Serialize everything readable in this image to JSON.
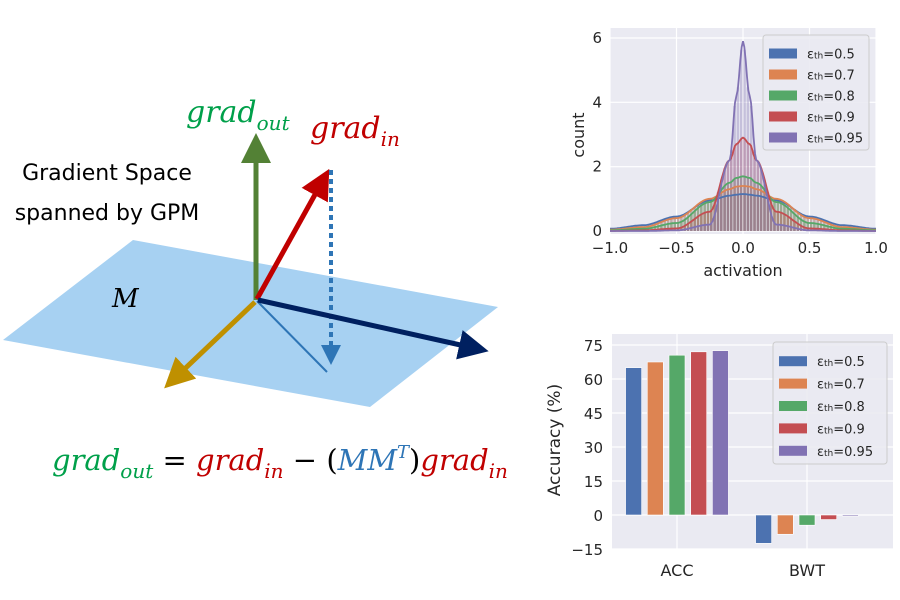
{
  "diagram": {
    "label_grad_out": {
      "base": "grad",
      "sub": "out"
    },
    "label_grad_in": {
      "base": "grad",
      "sub": "in"
    },
    "space_label_line1": "Gradient Space",
    "space_label_line2": "spanned by GPM",
    "plane_label": "M",
    "equation": {
      "lhs_base": "grad",
      "lhs_sub": "out",
      "eq": "=",
      "t1_base": "grad",
      "t1_sub": "in",
      "minus": "−",
      "open": "(",
      "mm": "MM",
      "sup": "T",
      "close": ")",
      "t2_base": "grad",
      "t2_sub": "in"
    },
    "colors": {
      "grad_out": "#538135",
      "grad_in": "#C00000",
      "plane": "#A7D1F2",
      "projection": "#2E75B6",
      "basis1": "#002060",
      "basis2": "#BF9000",
      "eq_mm": "#2E75B6"
    }
  },
  "chart_data": [
    {
      "type": "line",
      "xlabel": "activation",
      "ylabel": "count",
      "xlim": [
        -1.0,
        1.0
      ],
      "ylim": [
        0,
        6
      ],
      "xticks": [
        "−1.0",
        "−0.5",
        "0.0",
        "0.5",
        "1.0"
      ],
      "xtick_values": [
        -1,
        -0.5,
        0,
        0.5,
        1
      ],
      "yticks": [
        "0",
        "2",
        "4",
        "6"
      ],
      "ytick_values": [
        0,
        2,
        4,
        6
      ],
      "grid": true,
      "legend_placement": "top-right",
      "x": [
        -1,
        -0.75,
        -0.5,
        -0.25,
        -0.1,
        -0.05,
        0,
        0.05,
        0.1,
        0.25,
        0.5,
        0.75,
        1
      ],
      "series": [
        {
          "name": {
            "sym": "ε",
            "sub": "th",
            "val": "=0.5"
          },
          "color": "#4C72B0",
          "values": [
            0.07,
            0.18,
            0.45,
            0.95,
            1.1,
            1.13,
            1.15,
            1.13,
            1.1,
            0.95,
            0.45,
            0.18,
            0.07
          ]
        },
        {
          "name": {
            "sym": "ε",
            "sub": "th",
            "val": "=0.7"
          },
          "color": "#DD8452",
          "values": [
            0.04,
            0.12,
            0.4,
            1.0,
            1.3,
            1.38,
            1.4,
            1.38,
            1.3,
            1.0,
            0.4,
            0.12,
            0.04
          ]
        },
        {
          "name": {
            "sym": "ε",
            "sub": "th",
            "val": "=0.8"
          },
          "color": "#55A868",
          "values": [
            0.02,
            0.07,
            0.25,
            0.9,
            1.5,
            1.65,
            1.7,
            1.65,
            1.5,
            0.9,
            0.25,
            0.07,
            0.02
          ]
        },
        {
          "name": {
            "sym": "ε",
            "sub": "th",
            "val": "=0.9"
          },
          "color": "#C44E52",
          "values": [
            0,
            0.02,
            0.08,
            0.6,
            2.2,
            2.7,
            2.9,
            2.7,
            2.2,
            0.6,
            0.08,
            0.02,
            0
          ]
        },
        {
          "name": {
            "sym": "ε",
            "sub": "th",
            "val": "=0.95"
          },
          "color": "#8172B3",
          "values": [
            0,
            0,
            0.02,
            0.2,
            2.2,
            4.2,
            5.9,
            4.2,
            2.2,
            0.2,
            0.02,
            0,
            0
          ]
        }
      ]
    },
    {
      "type": "bar",
      "ylabel": "Accuracy (%)",
      "categories": [
        "ACC",
        "BWT"
      ],
      "ylim": [
        -15,
        78
      ],
      "yticks": [
        "−15",
        "0",
        "15",
        "30",
        "45",
        "60",
        "75"
      ],
      "ytick_values": [
        -15,
        0,
        15,
        30,
        45,
        60,
        75
      ],
      "grid": true,
      "legend_placement": "top-right",
      "series": [
        {
          "name": {
            "sym": "ε",
            "sub": "th",
            "val": "=0.5"
          },
          "color": "#4C72B0",
          "values": [
            65.0,
            -12.5
          ]
        },
        {
          "name": {
            "sym": "ε",
            "sub": "th",
            "val": "=0.7"
          },
          "color": "#DD8452",
          "values": [
            67.5,
            -8.5
          ]
        },
        {
          "name": {
            "sym": "ε",
            "sub": "th",
            "val": "=0.8"
          },
          "color": "#55A868",
          "values": [
            70.5,
            -4.5
          ]
        },
        {
          "name": {
            "sym": "ε",
            "sub": "th",
            "val": "=0.9"
          },
          "color": "#C44E52",
          "values": [
            72.0,
            -2.0
          ]
        },
        {
          "name": {
            "sym": "ε",
            "sub": "th",
            "val": "=0.95"
          },
          "color": "#8172B3",
          "values": [
            72.5,
            -0.5
          ]
        }
      ]
    }
  ]
}
